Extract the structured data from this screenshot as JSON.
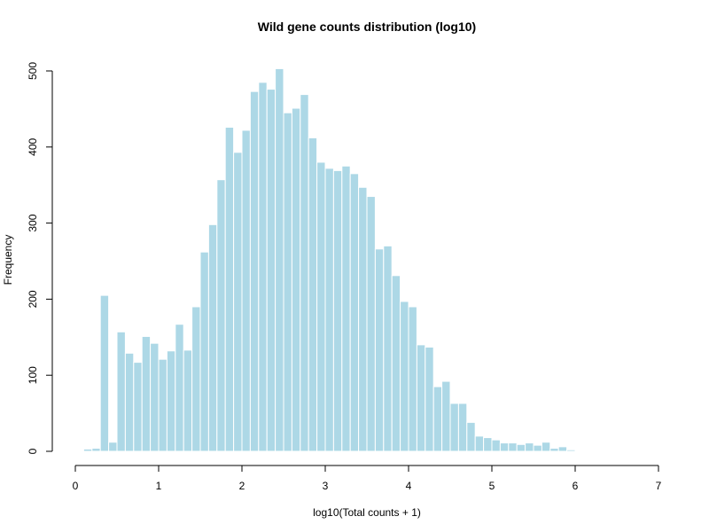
{
  "chart_data": {
    "type": "bar",
    "title": "Wild gene counts distribution (log10)",
    "xlabel": "log10(Total counts + 1)",
    "ylabel": "Frequency",
    "xlim": [
      0,
      7
    ],
    "ylim": [
      0,
      500
    ],
    "xticks": [
      0,
      1,
      2,
      3,
      4,
      5,
      6,
      7
    ],
    "yticks": [
      0,
      100,
      200,
      300,
      400,
      500
    ],
    "bin_width": 0.1,
    "bin_start": 0.1,
    "values": [
      3,
      4,
      205,
      12,
      157,
      129,
      117,
      151,
      142,
      121,
      132,
      167,
      133,
      190,
      262,
      298,
      357,
      426,
      393,
      422,
      473,
      485,
      476,
      503,
      445,
      451,
      469,
      412,
      380,
      372,
      369,
      375,
      365,
      347,
      335,
      266,
      270,
      231,
      197,
      190,
      140,
      137,
      85,
      92,
      63,
      63,
      38,
      20,
      18,
      15,
      11,
      11,
      9,
      11,
      8,
      12,
      4,
      6,
      2,
      1,
      1,
      1,
      0,
      0
    ],
    "grid": false,
    "bar_color": "#add8e6"
  }
}
